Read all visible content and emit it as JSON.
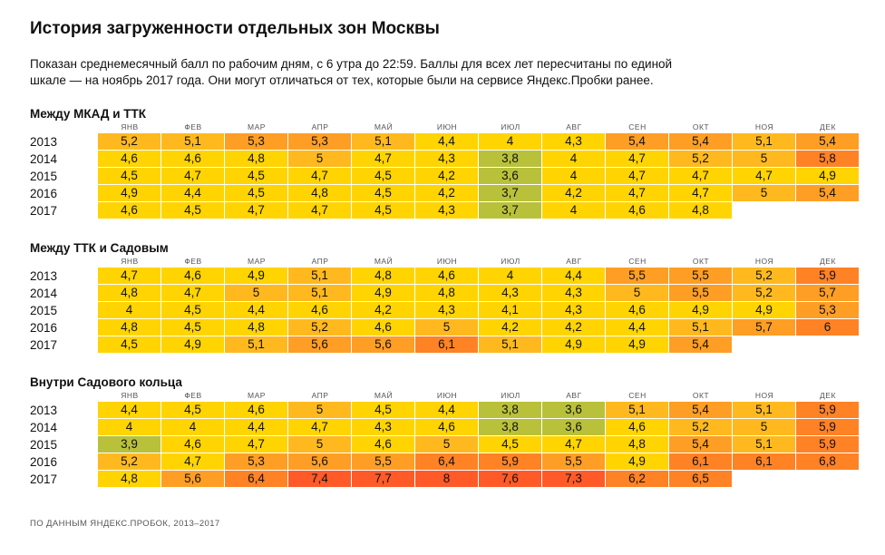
{
  "title": "История загруженности отдельных зон Москвы",
  "description_line1": "Показан среднемесячный балл по рабочим дням, с 6 утра до 22:59. Баллы для всех лет пересчитаны по единой",
  "description_line2": "шкале — на ноябрь 2017 года. Они могут отличаться от тех, которые были на сервисе Яндекс.Пробки ранее.",
  "footer": "ПО ДАННЫМ ЯНДЕКС.ПРОБОК, 2013–2017",
  "colors": {
    "green": "#b9c13a",
    "yellow": "#ffd400",
    "orange_light": "#ffb91f",
    "orange": "#ff9e24",
    "orange_dark": "#ff8225",
    "red": "#ff5a28"
  },
  "chart_data": {
    "type": "heatmap",
    "months": [
      "ЯНВ",
      "ФЕВ",
      "МАР",
      "АПР",
      "МАЙ",
      "ИЮН",
      "ИЮЛ",
      "АВГ",
      "СЕН",
      "ОКТ",
      "НОЯ",
      "ДЕК"
    ],
    "years": [
      "2013",
      "2014",
      "2015",
      "2016",
      "2017"
    ],
    "zones": [
      {
        "name": "Между МКАД и ТТК",
        "values": [
          [
            "5,2",
            "5,1",
            "5,3",
            "5,3",
            "5,1",
            "4,4",
            "4",
            "4,3",
            "5,4",
            "5,4",
            "5,1",
            "5,4"
          ],
          [
            "4,6",
            "4,6",
            "4,8",
            "5",
            "4,7",
            "4,3",
            "3,8",
            "4",
            "4,7",
            "5,2",
            "5",
            "5,8"
          ],
          [
            "4,5",
            "4,7",
            "4,5",
            "4,7",
            "4,5",
            "4,2",
            "3,6",
            "4",
            "4,7",
            "4,7",
            "4,7",
            "4,9"
          ],
          [
            "4,9",
            "4,4",
            "4,5",
            "4,8",
            "4,5",
            "4,2",
            "3,7",
            "4,2",
            "4,7",
            "4,7",
            "5",
            "5,4"
          ],
          [
            "4,6",
            "4,5",
            "4,7",
            "4,7",
            "4,5",
            "4,3",
            "3,7",
            "4",
            "4,6",
            "4,8"
          ]
        ]
      },
      {
        "name": "Между ТТК и Садовым",
        "values": [
          [
            "4,7",
            "4,6",
            "4,9",
            "5,1",
            "4,8",
            "4,6",
            "4",
            "4,4",
            "5,5",
            "5,5",
            "5,2",
            "5,9"
          ],
          [
            "4,8",
            "4,7",
            "5",
            "5,1",
            "4,9",
            "4,8",
            "4,3",
            "4,3",
            "5",
            "5,5",
            "5,2",
            "5,7"
          ],
          [
            "4",
            "4,5",
            "4,4",
            "4,6",
            "4,2",
            "4,3",
            "4,1",
            "4,3",
            "4,6",
            "4,9",
            "4,9",
            "5,3"
          ],
          [
            "4,8",
            "4,5",
            "4,8",
            "5,2",
            "4,6",
            "5",
            "4,2",
            "4,2",
            "4,4",
            "5,1",
            "5,7",
            "6"
          ],
          [
            "4,5",
            "4,9",
            "5,1",
            "5,6",
            "5,6",
            "6,1",
            "5,1",
            "4,9",
            "4,9",
            "5,4"
          ]
        ]
      },
      {
        "name": "Внутри Садового кольца",
        "values": [
          [
            "4,4",
            "4,5",
            "4,6",
            "5",
            "4,5",
            "4,4",
            "3,8",
            "3,6",
            "5,1",
            "5,4",
            "5,1",
            "5,9"
          ],
          [
            "4",
            "4",
            "4,4",
            "4,7",
            "4,3",
            "4,6",
            "3,8",
            "3,6",
            "4,6",
            "5,2",
            "5",
            "5,9"
          ],
          [
            "3,9",
            "4,6",
            "4,7",
            "5",
            "4,6",
            "5",
            "4,5",
            "4,7",
            "4,8",
            "5,4",
            "5,1",
            "5,9"
          ],
          [
            "5,2",
            "4,7",
            "5,3",
            "5,6",
            "5,5",
            "6,4",
            "5,9",
            "5,5",
            "4,9",
            "6,1",
            "6,1",
            "6,8"
          ],
          [
            "4,8",
            "5,6",
            "6,4",
            "7,4",
            "7,7",
            "8",
            "7,6",
            "7,3",
            "6,2",
            "6,5"
          ]
        ]
      }
    ]
  }
}
